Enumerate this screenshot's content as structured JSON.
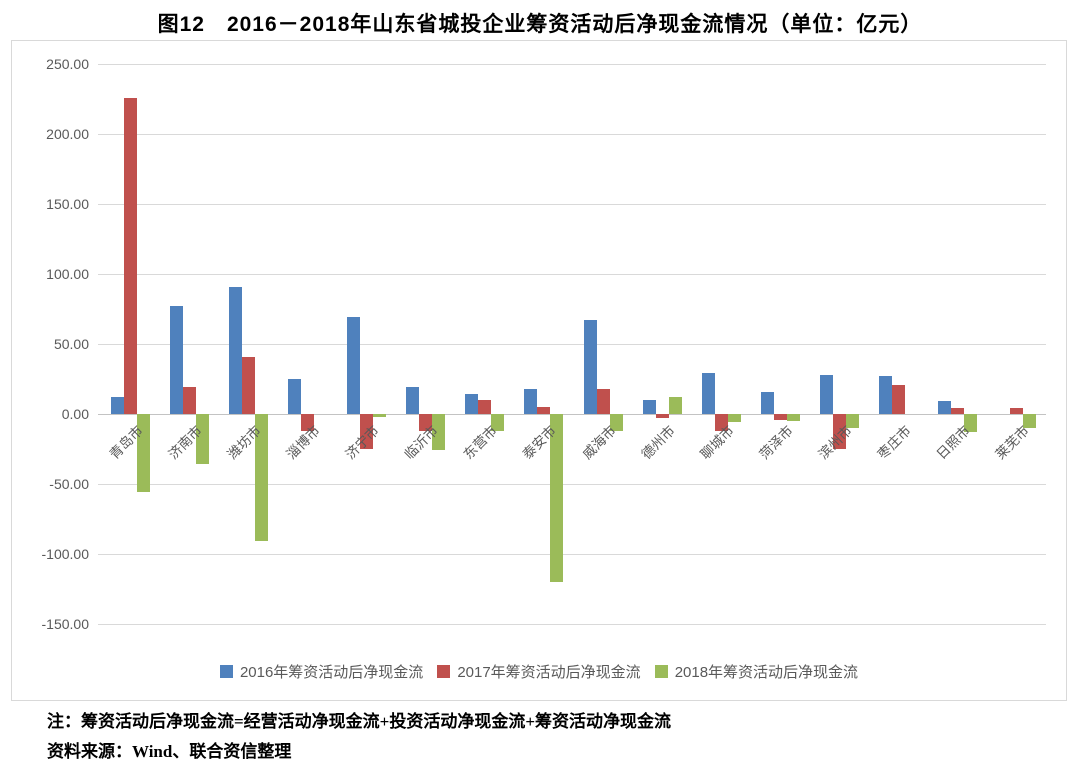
{
  "title": "图12　2016－2018年山东省城投企业筹资活动后净现金流情况（单位：亿元）",
  "notes": {
    "line1": "注：筹资活动后净现金流=经营活动净现金流+投资活动净现金流+筹资活动净现金流",
    "line2": "资料来源：Wind、联合资信整理"
  },
  "colors": {
    "series_2016": "#4f81bd",
    "series_2017": "#c0504d",
    "series_2018": "#9bbb59",
    "gridline": "#d9d9d9",
    "axis_text": "#595959"
  },
  "chart_data": {
    "type": "bar",
    "title": "图12　2016－2018年山东省城投企业筹资活动后净现金流情况（单位：亿元）",
    "xlabel": "",
    "ylabel": "",
    "unit": "亿元",
    "ylim": [
      -150,
      250
    ],
    "ytick_step": 50,
    "ytick_labels": [
      "250.00",
      "200.00",
      "150.00",
      "100.00",
      "50.00",
      "0.00",
      "-50.00",
      "-100.00",
      "-150.00"
    ],
    "grid": true,
    "legend_position": "bottom",
    "categories": [
      "青岛市",
      "济南市",
      "潍坊市",
      "淄博市",
      "济宁市",
      "临沂市",
      "东营市",
      "泰安市",
      "威海市",
      "德州市",
      "聊城市",
      "菏泽市",
      "滨州市",
      "枣庄市",
      "日照市",
      "莱芜市"
    ],
    "series": [
      {
        "name": "2016年筹资活动后净现金流",
        "color": "#4f81bd",
        "values": [
          12,
          77,
          91,
          25,
          69,
          19,
          14,
          18,
          67,
          10,
          29,
          16,
          28,
          27,
          9,
          0
        ]
      },
      {
        "name": "2017年筹资活动后净现金流",
        "color": "#c0504d",
        "values": [
          226,
          19,
          41,
          -12,
          -25,
          -12,
          10,
          5,
          18,
          -3,
          -12,
          -4,
          -25,
          21,
          4,
          4
        ]
      },
      {
        "name": "2018年筹资活动后净现金流",
        "color": "#9bbb59",
        "values": [
          -56,
          -36,
          -91,
          0,
          -2,
          -26,
          -12,
          -120,
          -12,
          12,
          -6,
          -5,
          -10,
          0,
          -13,
          -10
        ]
      }
    ]
  }
}
